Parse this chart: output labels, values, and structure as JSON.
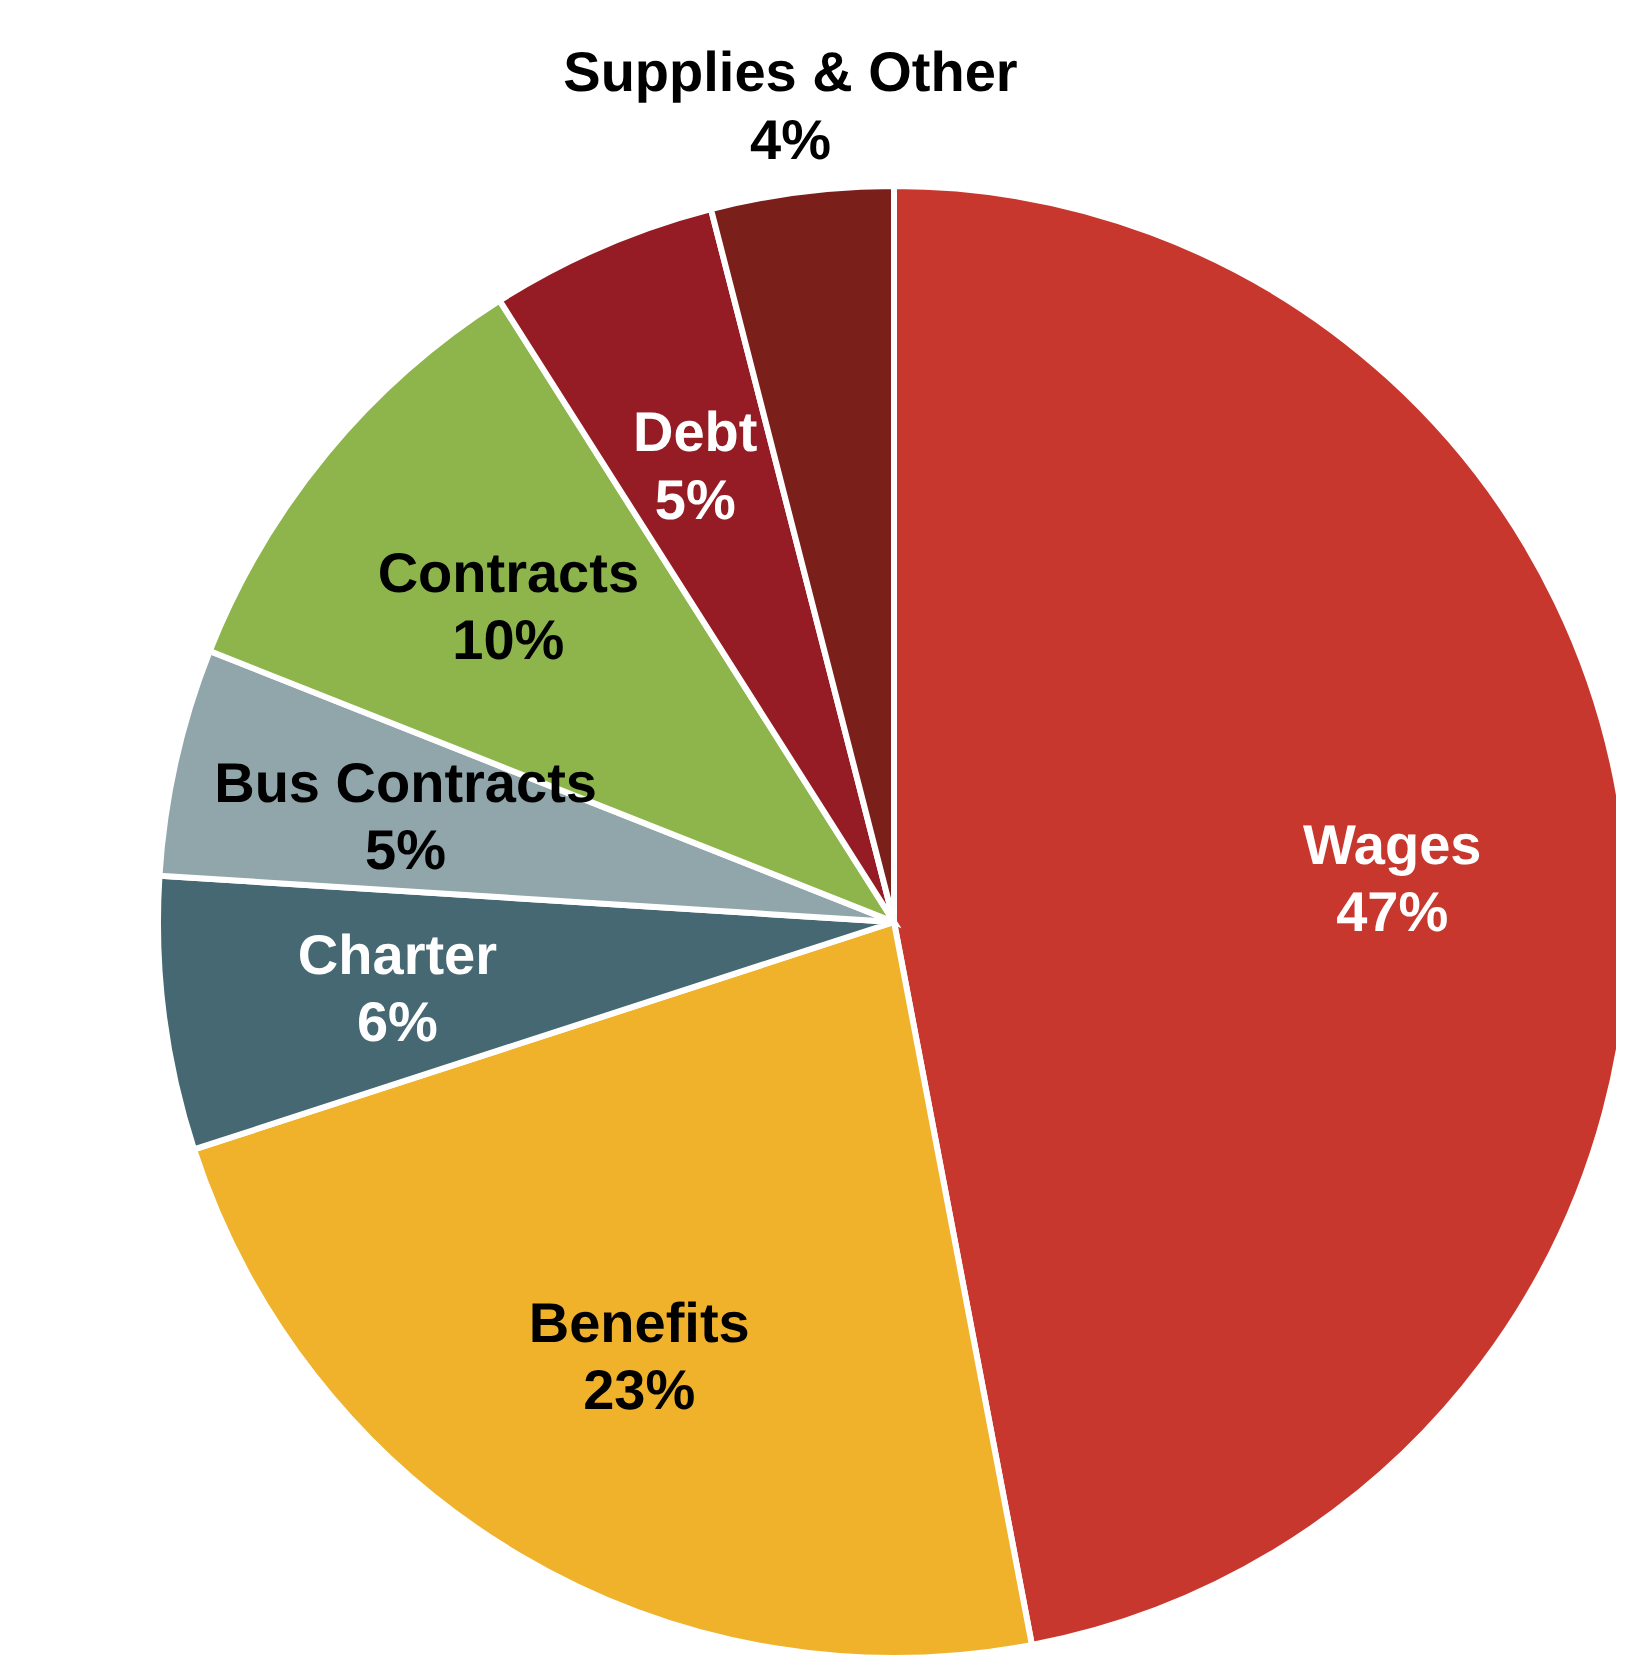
{
  "chart_data": {
    "type": "pie",
    "categories": [
      "Wages",
      "Benefits",
      "Charter",
      "Bus Contracts",
      "Contracts",
      "Debt",
      "Supplies & Other"
    ],
    "values": [
      47,
      23,
      6,
      5,
      10,
      5,
      4
    ],
    "value_labels": [
      "47%",
      "23%",
      "6%",
      "5%",
      "10%",
      "5%",
      "4%"
    ],
    "colors": [
      "#c8372d",
      "#f0b22b",
      "#456872",
      "#91a6ab",
      "#8db54b",
      "#951c24",
      "#7b1f1a"
    ],
    "legend": false
  }
}
